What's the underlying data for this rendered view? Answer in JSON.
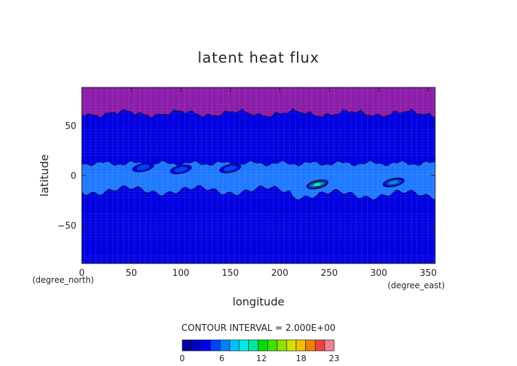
{
  "chart_data": {
    "type": "heatmap",
    "title": "latent heat flux",
    "xlabel": "longitude",
    "ylabel": "latitude",
    "x_unit": "(degree_east)",
    "y_unit": "(degree_north)",
    "xlim": [
      0,
      357
    ],
    "ylim": [
      -88,
      88
    ],
    "xticks": [
      0,
      50,
      100,
      150,
      200,
      250,
      300,
      350
    ],
    "yticks": [
      50,
      0,
      -50
    ],
    "contour_interval_text": "CONTOUR INTERVAL = 2.000E+00",
    "colorbar": {
      "min": 0,
      "max": 23,
      "tick_labels": [
        "0",
        "6",
        "12",
        "18",
        "23"
      ],
      "tick_values": [
        0,
        6,
        12,
        18,
        23
      ],
      "colors": [
        "#0000a0",
        "#0000c8",
        "#0000f0",
        "#0040ff",
        "#0080ff",
        "#00c0ff",
        "#00e8e8",
        "#00e8a0",
        "#00e000",
        "#40e000",
        "#90e000",
        "#d0e000",
        "#f0c000",
        "#f08000",
        "#f04040",
        "#f08090"
      ]
    },
    "regions": [
      {
        "band": "north polar",
        "lat_range": [
          62,
          88
        ],
        "value_level": 0,
        "color": "#8a1aa8"
      },
      {
        "band": "midlatitude",
        "lat_range": [
          -88,
          62
        ],
        "value_level": 2,
        "color": "#0000e0"
      },
      {
        "band": "tropical",
        "lat_range": [
          -15,
          12
        ],
        "value_level": 4,
        "color": "#1e78ff"
      }
    ],
    "hotspots": [
      {
        "lon": 238,
        "lat": -9,
        "peak": 12
      },
      {
        "lon": 315,
        "lat": -7,
        "peak": 8
      },
      {
        "lon": 150,
        "lat": 7,
        "peak": 6
      },
      {
        "lon": 100,
        "lat": 6,
        "peak": 6
      },
      {
        "lon": 62,
        "lat": 8,
        "peak": 6
      }
    ]
  }
}
